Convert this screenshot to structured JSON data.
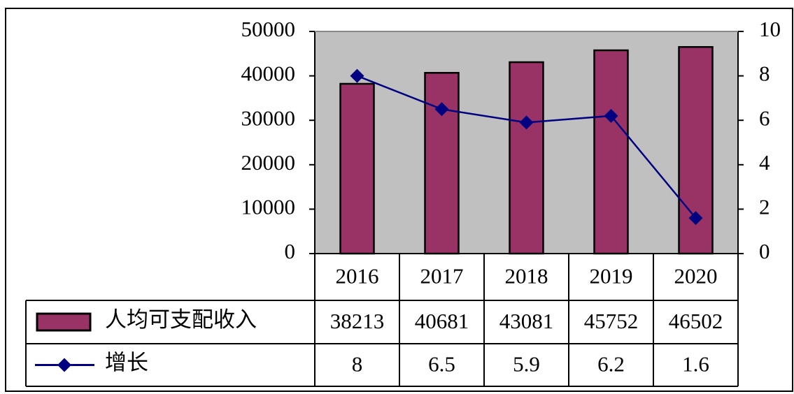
{
  "chart_data": {
    "type": "bar-line",
    "categories": [
      "2016",
      "2017",
      "2018",
      "2019",
      "2020"
    ],
    "series": [
      {
        "name": "人均可支配收入",
        "type": "bar",
        "color": "#993366",
        "values": [
          38213,
          40681,
          43081,
          45752,
          46502
        ]
      },
      {
        "name": "增长",
        "type": "line",
        "axis": "y2",
        "color": "#000080",
        "values": [
          8,
          6.5,
          5.9,
          6.2,
          1.6
        ]
      }
    ],
    "ylim": [
      0,
      50000
    ],
    "yticks": [
      0,
      10000,
      20000,
      30000,
      40000,
      50000
    ],
    "y2lim": [
      0,
      10
    ],
    "y2ticks": [
      0,
      2,
      4,
      6,
      8,
      10
    ],
    "plot_background": "#c0c0c0"
  }
}
